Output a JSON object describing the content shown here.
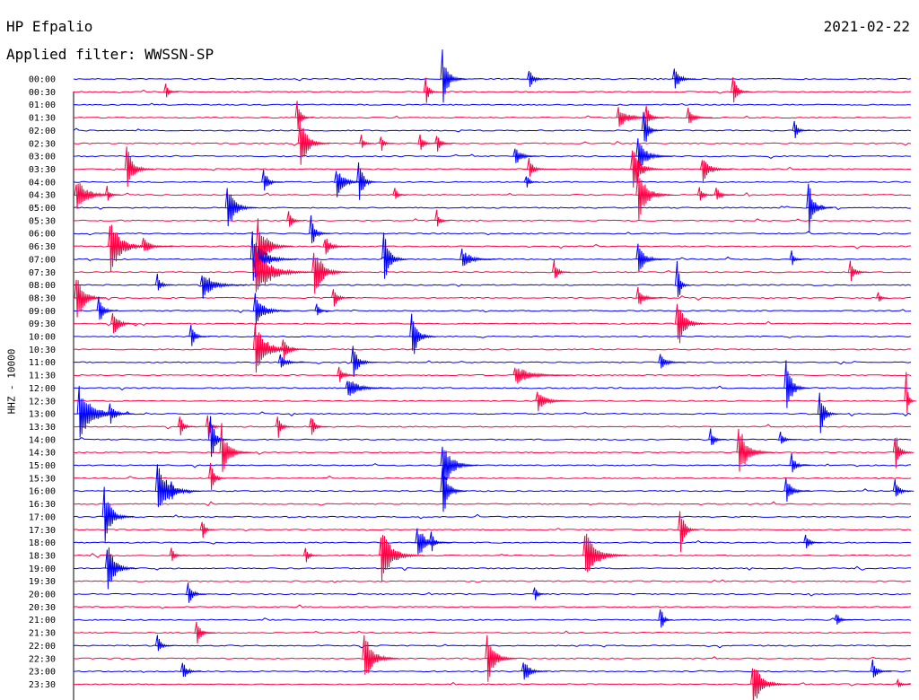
{
  "header": {
    "station": "HP Efpalio",
    "date": "2021-02-22",
    "filter_text": "Applied filter: WWSSN-SP",
    "channel": "HHZ - 10000"
  },
  "colors": {
    "trace_a": "#0000ff",
    "trace_b": "#ff0044",
    "axis": "#000000"
  },
  "chart_data": {
    "type": "line",
    "title": "HP Efpalio",
    "subtitle": "Applied filter: WWSSN-SP",
    "ylabel": "HHZ - 10000",
    "xlabel": "",
    "x_range_minutes": [
      0,
      30
    ],
    "time_labels": [
      "00:00",
      "00:30",
      "01:00",
      "01:30",
      "02:00",
      "02:30",
      "03:00",
      "03:30",
      "04:00",
      "04:30",
      "05:00",
      "05:30",
      "06:00",
      "06:30",
      "07:00",
      "07:30",
      "08:00",
      "08:30",
      "09:00",
      "09:30",
      "10:00",
      "10:30",
      "11:00",
      "11:30",
      "12:00",
      "12:30",
      "13:00",
      "13:30",
      "14:00",
      "14:30",
      "15:00",
      "15:30",
      "16:00",
      "16:30",
      "17:00",
      "17:30",
      "18:00",
      "18:30",
      "19:00",
      "19:30",
      "20:00",
      "20:30",
      "21:00",
      "21:30",
      "22:00",
      "22:30",
      "23:00",
      "23:30"
    ],
    "series_colors": [
      "#0000ff",
      "#ff0044"
    ],
    "grid": false,
    "events": [
      {
        "trace": 0,
        "minute": 13.2,
        "amp": 1.0,
        "dur": 0.8
      },
      {
        "trace": 0,
        "minute": 16.3,
        "amp": 0.4,
        "dur": 0.6
      },
      {
        "trace": 0,
        "minute": 21.5,
        "amp": 0.5,
        "dur": 0.7
      },
      {
        "trace": 1,
        "minute": 3.3,
        "amp": 0.3,
        "dur": 0.4
      },
      {
        "trace": 1,
        "minute": 12.6,
        "amp": 0.6,
        "dur": 0.4
      },
      {
        "trace": 1,
        "minute": 23.6,
        "amp": 0.6,
        "dur": 0.6
      },
      {
        "trace": 3,
        "minute": 8.0,
        "amp": 0.6,
        "dur": 0.5
      },
      {
        "trace": 3,
        "minute": 19.5,
        "amp": 0.35,
        "dur": 1.5
      },
      {
        "trace": 3,
        "minute": 20.5,
        "amp": 0.4,
        "dur": 0.6
      },
      {
        "trace": 3,
        "minute": 22.0,
        "amp": 0.35,
        "dur": 0.8
      },
      {
        "trace": 4,
        "minute": 20.4,
        "amp": 0.8,
        "dur": 0.6
      },
      {
        "trace": 4,
        "minute": 25.8,
        "amp": 0.35,
        "dur": 0.5
      },
      {
        "trace": 5,
        "minute": 8.1,
        "amp": 1.0,
        "dur": 1.0
      },
      {
        "trace": 5,
        "minute": 10.3,
        "amp": 0.3,
        "dur": 0.4
      },
      {
        "trace": 5,
        "minute": 11.0,
        "amp": 0.35,
        "dur": 0.4
      },
      {
        "trace": 5,
        "minute": 12.4,
        "amp": 0.35,
        "dur": 0.5
      },
      {
        "trace": 5,
        "minute": 13.0,
        "amp": 0.4,
        "dur": 0.5
      },
      {
        "trace": 6,
        "minute": 15.8,
        "amp": 0.4,
        "dur": 0.8
      },
      {
        "trace": 6,
        "minute": 20.2,
        "amp": 0.6,
        "dur": 1.2
      },
      {
        "trace": 7,
        "minute": 1.9,
        "amp": 0.8,
        "dur": 0.9
      },
      {
        "trace": 7,
        "minute": 16.3,
        "amp": 0.4,
        "dur": 0.6
      },
      {
        "trace": 7,
        "minute": 20.0,
        "amp": 0.9,
        "dur": 1.0
      },
      {
        "trace": 7,
        "minute": 22.5,
        "amp": 0.5,
        "dur": 1.0
      },
      {
        "trace": 8,
        "minute": 6.8,
        "amp": 0.5,
        "dur": 0.6
      },
      {
        "trace": 8,
        "minute": 9.4,
        "amp": 0.6,
        "dur": 1.0
      },
      {
        "trace": 8,
        "minute": 10.2,
        "amp": 0.9,
        "dur": 0.6
      },
      {
        "trace": 8,
        "minute": 16.2,
        "amp": 0.3,
        "dur": 0.4
      },
      {
        "trace": 9,
        "minute": 0.1,
        "amp": 0.6,
        "dur": 1.5
      },
      {
        "trace": 9,
        "minute": 1.2,
        "amp": 0.3,
        "dur": 0.4
      },
      {
        "trace": 9,
        "minute": 11.5,
        "amp": 0.3,
        "dur": 0.4
      },
      {
        "trace": 9,
        "minute": 20.2,
        "amp": 1.0,
        "dur": 1.2
      },
      {
        "trace": 9,
        "minute": 22.4,
        "amp": 0.3,
        "dur": 0.5
      },
      {
        "trace": 9,
        "minute": 23.0,
        "amp": 0.35,
        "dur": 0.6
      },
      {
        "trace": 10,
        "minute": 5.5,
        "amp": 1.0,
        "dur": 1.0
      },
      {
        "trace": 10,
        "minute": 26.3,
        "amp": 1.0,
        "dur": 0.8
      },
      {
        "trace": 11,
        "minute": 7.7,
        "amp": 0.35,
        "dur": 0.5
      },
      {
        "trace": 11,
        "minute": 13.0,
        "amp": 0.4,
        "dur": 0.4
      },
      {
        "trace": 12,
        "minute": 8.5,
        "amp": 0.6,
        "dur": 0.6
      },
      {
        "trace": 13,
        "minute": 1.3,
        "amp": 1.0,
        "dur": 1.5
      },
      {
        "trace": 13,
        "minute": 2.5,
        "amp": 0.3,
        "dur": 1.0
      },
      {
        "trace": 13,
        "minute": 6.6,
        "amp": 1.0,
        "dur": 1.2
      },
      {
        "trace": 13,
        "minute": 9.0,
        "amp": 0.4,
        "dur": 0.8
      },
      {
        "trace": 14,
        "minute": 6.4,
        "amp": 1.0,
        "dur": 1.5
      },
      {
        "trace": 14,
        "minute": 11.1,
        "amp": 1.0,
        "dur": 0.8
      },
      {
        "trace": 14,
        "minute": 13.9,
        "amp": 0.4,
        "dur": 1.2
      },
      {
        "trace": 14,
        "minute": 20.2,
        "amp": 0.6,
        "dur": 1.0
      },
      {
        "trace": 14,
        "minute": 25.7,
        "amp": 0.3,
        "dur": 0.4
      },
      {
        "trace": 15,
        "minute": 6.5,
        "amp": 1.0,
        "dur": 2.0
      },
      {
        "trace": 15,
        "minute": 8.6,
        "amp": 1.0,
        "dur": 1.2
      },
      {
        "trace": 15,
        "minute": 17.2,
        "amp": 0.4,
        "dur": 0.5
      },
      {
        "trace": 15,
        "minute": 27.8,
        "amp": 0.4,
        "dur": 0.6
      },
      {
        "trace": 16,
        "minute": 3.0,
        "amp": 0.4,
        "dur": 0.5
      },
      {
        "trace": 16,
        "minute": 4.6,
        "amp": 0.5,
        "dur": 1.5
      },
      {
        "trace": 16,
        "minute": 21.6,
        "amp": 1.0,
        "dur": 0.4
      },
      {
        "trace": 17,
        "minute": 0.1,
        "amp": 1.0,
        "dur": 1.0
      },
      {
        "trace": 17,
        "minute": 9.3,
        "amp": 0.4,
        "dur": 0.6
      },
      {
        "trace": 17,
        "minute": 20.2,
        "amp": 0.4,
        "dur": 0.8
      },
      {
        "trace": 17,
        "minute": 28.8,
        "amp": 0.3,
        "dur": 0.3
      },
      {
        "trace": 18,
        "minute": 0.9,
        "amp": 0.6,
        "dur": 0.6
      },
      {
        "trace": 18,
        "minute": 6.5,
        "amp": 0.6,
        "dur": 1.2
      },
      {
        "trace": 18,
        "minute": 8.7,
        "amp": 0.3,
        "dur": 0.4
      },
      {
        "trace": 19,
        "minute": 1.4,
        "amp": 0.5,
        "dur": 0.8
      },
      {
        "trace": 19,
        "minute": 21.6,
        "amp": 1.0,
        "dur": 1.0
      },
      {
        "trace": 20,
        "minute": 4.2,
        "amp": 0.4,
        "dur": 0.6
      },
      {
        "trace": 20,
        "minute": 12.1,
        "amp": 1.0,
        "dur": 0.8
      },
      {
        "trace": 21,
        "minute": 6.5,
        "amp": 1.0,
        "dur": 1.5
      },
      {
        "trace": 21,
        "minute": 7.5,
        "amp": 0.4,
        "dur": 0.8
      },
      {
        "trace": 22,
        "minute": 7.4,
        "amp": 0.3,
        "dur": 0.8
      },
      {
        "trace": 22,
        "minute": 10.0,
        "amp": 0.6,
        "dur": 0.8
      },
      {
        "trace": 22,
        "minute": 21.0,
        "amp": 0.3,
        "dur": 0.8
      },
      {
        "trace": 23,
        "minute": 9.5,
        "amp": 0.4,
        "dur": 0.6
      },
      {
        "trace": 23,
        "minute": 15.8,
        "amp": 0.35,
        "dur": 2.0
      },
      {
        "trace": 24,
        "minute": 9.8,
        "amp": 0.4,
        "dur": 1.5
      },
      {
        "trace": 24,
        "minute": 25.5,
        "amp": 1.0,
        "dur": 0.8
      },
      {
        "trace": 25,
        "minute": 16.6,
        "amp": 0.4,
        "dur": 1.2
      },
      {
        "trace": 25,
        "minute": 29.8,
        "amp": 1.0,
        "dur": 0.3
      },
      {
        "trace": 26,
        "minute": 0.2,
        "amp": 1.0,
        "dur": 1.8
      },
      {
        "trace": 26,
        "minute": 1.3,
        "amp": 0.4,
        "dur": 0.8
      },
      {
        "trace": 26,
        "minute": 26.7,
        "amp": 1.0,
        "dur": 0.6
      },
      {
        "trace": 27,
        "minute": 3.8,
        "amp": 0.5,
        "dur": 0.5
      },
      {
        "trace": 27,
        "minute": 4.8,
        "amp": 0.5,
        "dur": 0.5
      },
      {
        "trace": 27,
        "minute": 7.3,
        "amp": 0.5,
        "dur": 0.5
      },
      {
        "trace": 27,
        "minute": 8.5,
        "amp": 0.5,
        "dur": 0.5
      },
      {
        "trace": 28,
        "minute": 4.9,
        "amp": 1.0,
        "dur": 0.6
      },
      {
        "trace": 28,
        "minute": 22.8,
        "amp": 0.4,
        "dur": 0.5
      },
      {
        "trace": 28,
        "minute": 25.3,
        "amp": 0.3,
        "dur": 0.5
      },
      {
        "trace": 29,
        "minute": 5.3,
        "amp": 1.0,
        "dur": 1.0
      },
      {
        "trace": 29,
        "minute": 23.8,
        "amp": 1.0,
        "dur": 1.2
      },
      {
        "trace": 29,
        "minute": 29.4,
        "amp": 0.8,
        "dur": 0.6
      },
      {
        "trace": 30,
        "minute": 13.2,
        "amp": 1.0,
        "dur": 1.2
      },
      {
        "trace": 30,
        "minute": 25.7,
        "amp": 0.4,
        "dur": 0.6
      },
      {
        "trace": 31,
        "minute": 4.9,
        "amp": 0.6,
        "dur": 0.5
      },
      {
        "trace": 32,
        "minute": 3.0,
        "amp": 1.0,
        "dur": 1.5
      },
      {
        "trace": 32,
        "minute": 3.5,
        "amp": 0.4,
        "dur": 0.5
      },
      {
        "trace": 32,
        "minute": 13.2,
        "amp": 1.0,
        "dur": 0.8
      },
      {
        "trace": 32,
        "minute": 25.5,
        "amp": 0.5,
        "dur": 0.8
      },
      {
        "trace": 32,
        "minute": 29.4,
        "amp": 0.4,
        "dur": 0.6
      },
      {
        "trace": 34,
        "minute": 1.1,
        "amp": 1.0,
        "dur": 1.0
      },
      {
        "trace": 35,
        "minute": 4.6,
        "amp": 0.4,
        "dur": 0.4
      },
      {
        "trace": 35,
        "minute": 21.7,
        "amp": 1.0,
        "dur": 0.6
      },
      {
        "trace": 36,
        "minute": 12.3,
        "amp": 0.6,
        "dur": 1.2
      },
      {
        "trace": 36,
        "minute": 12.8,
        "amp": 0.5,
        "dur": 0.4
      },
      {
        "trace": 36,
        "minute": 26.2,
        "amp": 0.4,
        "dur": 0.5
      },
      {
        "trace": 37,
        "minute": 11.0,
        "amp": 1.0,
        "dur": 1.5
      },
      {
        "trace": 37,
        "minute": 18.3,
        "amp": 1.0,
        "dur": 1.5
      },
      {
        "trace": 37,
        "minute": 3.5,
        "amp": 0.3,
        "dur": 0.5
      },
      {
        "trace": 37,
        "minute": 8.3,
        "amp": 0.3,
        "dur": 0.5
      },
      {
        "trace": 38,
        "minute": 1.2,
        "amp": 1.0,
        "dur": 1.0
      },
      {
        "trace": 40,
        "minute": 4.1,
        "amp": 0.5,
        "dur": 0.6
      },
      {
        "trace": 40,
        "minute": 16.5,
        "amp": 0.3,
        "dur": 0.4
      },
      {
        "trace": 42,
        "minute": 21.0,
        "amp": 0.6,
        "dur": 0.4
      },
      {
        "trace": 42,
        "minute": 27.3,
        "amp": 0.3,
        "dur": 0.5
      },
      {
        "trace": 43,
        "minute": 4.4,
        "amp": 0.5,
        "dur": 0.6
      },
      {
        "trace": 44,
        "minute": 3.0,
        "amp": 0.4,
        "dur": 0.5
      },
      {
        "trace": 45,
        "minute": 10.4,
        "amp": 1.0,
        "dur": 1.2
      },
      {
        "trace": 45,
        "minute": 14.8,
        "amp": 1.0,
        "dur": 1.0
      },
      {
        "trace": 46,
        "minute": 3.9,
        "amp": 0.4,
        "dur": 0.6
      },
      {
        "trace": 46,
        "minute": 16.1,
        "amp": 0.5,
        "dur": 0.8
      },
      {
        "trace": 46,
        "minute": 28.6,
        "amp": 0.4,
        "dur": 0.6
      },
      {
        "trace": 47,
        "minute": 24.3,
        "amp": 0.9,
        "dur": 1.2
      },
      {
        "trace": 47,
        "minute": 29.5,
        "amp": 0.2,
        "dur": 0.4
      }
    ]
  }
}
